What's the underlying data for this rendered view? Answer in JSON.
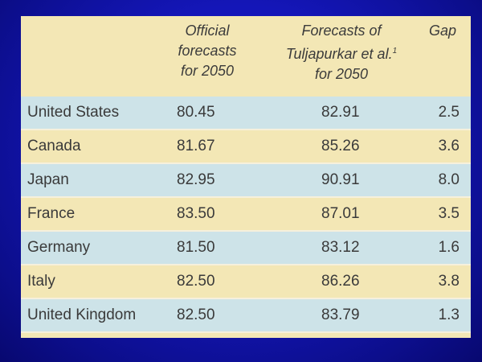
{
  "header": {
    "official": [
      "Official",
      "forecasts",
      "for 2050"
    ],
    "forecast_line1": "Forecasts of",
    "forecast_line2": "Tuljapurkar et al.",
    "forecast_sup": "1",
    "forecast_line3": "for 2050",
    "gap": "Gap"
  },
  "rows": [
    {
      "country": "United States",
      "official": "80.45",
      "forecast": "82.91",
      "gap": "2.5"
    },
    {
      "country": "Canada",
      "official": "81.67",
      "forecast": "85.26",
      "gap": "3.6"
    },
    {
      "country": "Japan",
      "official": "82.95",
      "forecast": "90.91",
      "gap": "8.0"
    },
    {
      "country": "France",
      "official": "83.50",
      "forecast": "87.01",
      "gap": "3.5"
    },
    {
      "country": "Germany",
      "official": "81.50",
      "forecast": "83.12",
      "gap": "1.6"
    },
    {
      "country": "Italy",
      "official": "82.50",
      "forecast": "86.26",
      "gap": "3.8"
    },
    {
      "country": "United Kingdom",
      "official": "82.50",
      "forecast": "83.79",
      "gap": "1.3"
    }
  ],
  "colors": {
    "background": "#1416b8",
    "row_blue": "#cde3e8",
    "row_tan": "#f3e7b5"
  }
}
